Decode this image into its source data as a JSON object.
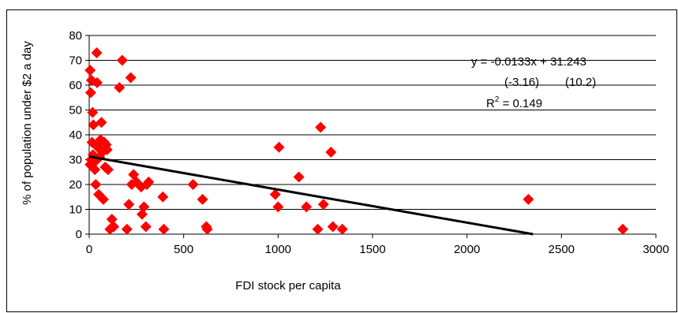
{
  "chart_data": {
    "type": "scatter",
    "xlabel": "FDI stock per capita",
    "ylabel": "% of population under $2 a day",
    "xlim": [
      0,
      3000
    ],
    "ylim": [
      0,
      80
    ],
    "xticks": [
      "0",
      "500",
      "1000",
      "1500",
      "2000",
      "2500",
      "3000"
    ],
    "yticks": [
      "0",
      "10",
      "20",
      "30",
      "40",
      "50",
      "60",
      "70",
      "80"
    ],
    "grid": "horizontal",
    "marker": "diamond",
    "marker_color": "#ff0000",
    "trendline_color": "#000000",
    "trendline": {
      "slope": -0.0133,
      "intercept": 31.243
    },
    "annotations": {
      "equation": "y = -0.0133x + 31.243",
      "tstats": [
        "(-3.16)",
        "(10.2)"
      ],
      "r2_label": "R",
      "r2_sup": "2",
      "r2_value": " = 0.149"
    },
    "points": [
      [
        5,
        66
      ],
      [
        8,
        57
      ],
      [
        12,
        62
      ],
      [
        18,
        49
      ],
      [
        22,
        44
      ],
      [
        15,
        37
      ],
      [
        10,
        30
      ],
      [
        5,
        28
      ],
      [
        20,
        32
      ],
      [
        28,
        29
      ],
      [
        30,
        26
      ],
      [
        35,
        20
      ],
      [
        40,
        73
      ],
      [
        42,
        61
      ],
      [
        45,
        35
      ],
      [
        50,
        16
      ],
      [
        55,
        31
      ],
      [
        60,
        38
      ],
      [
        65,
        45
      ],
      [
        70,
        33
      ],
      [
        75,
        14
      ],
      [
        80,
        37
      ],
      [
        85,
        27
      ],
      [
        90,
        36
      ],
      [
        95,
        34
      ],
      [
        100,
        26
      ],
      [
        110,
        2
      ],
      [
        120,
        6
      ],
      [
        130,
        3
      ],
      [
        160,
        59
      ],
      [
        175,
        70
      ],
      [
        200,
        2
      ],
      [
        210,
        12
      ],
      [
        220,
        63
      ],
      [
        225,
        20
      ],
      [
        235,
        24
      ],
      [
        250,
        21
      ],
      [
        275,
        19
      ],
      [
        280,
        8
      ],
      [
        290,
        11
      ],
      [
        300,
        3
      ],
      [
        305,
        20
      ],
      [
        315,
        21
      ],
      [
        390,
        15
      ],
      [
        395,
        2
      ],
      [
        550,
        20
      ],
      [
        600,
        14
      ],
      [
        620,
        3
      ],
      [
        625,
        2
      ],
      [
        985,
        16
      ],
      [
        1000,
        11
      ],
      [
        1005,
        35
      ],
      [
        1110,
        23
      ],
      [
        1150,
        11
      ],
      [
        1210,
        2
      ],
      [
        1225,
        43
      ],
      [
        1240,
        12
      ],
      [
        1280,
        33
      ],
      [
        1290,
        3
      ],
      [
        1340,
        2
      ],
      [
        2325,
        14
      ],
      [
        2825,
        2
      ]
    ]
  }
}
